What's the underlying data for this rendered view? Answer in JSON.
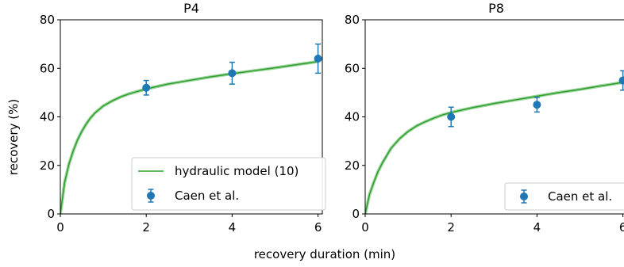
{
  "chart_data": [
    {
      "type": "line",
      "title": "P4",
      "xlabel": "recovery duration (min)",
      "ylabel": "recovery (%)",
      "xlim": [
        0,
        6.1
      ],
      "ylim": [
        0,
        80
      ],
      "xticks": [
        "0",
        "2",
        "4",
        "6"
      ],
      "yticks": [
        "0",
        "20",
        "40",
        "60",
        "80"
      ],
      "grid": false,
      "legend_placement": "lower-right",
      "series": [
        {
          "name": "hydraulic model (10)",
          "kind": "line",
          "color": "#2ca02c",
          "x": [
            0,
            0.1,
            0.2,
            0.3,
            0.4,
            0.5,
            0.6,
            0.7,
            0.8,
            0.9,
            1.0,
            1.2,
            1.4,
            1.6,
            1.8,
            2.0,
            2.5,
            3.0,
            3.5,
            4.0,
            4.5,
            5.0,
            5.5,
            6.0
          ],
          "y": [
            0,
            13,
            20.5,
            26,
            30.5,
            34,
            37,
            39.5,
            41.5,
            43,
            44.5,
            46.5,
            48.2,
            49.5,
            50.5,
            51.5,
            53.5,
            55,
            56.5,
            57.8,
            59,
            60.2,
            61.5,
            62.8
          ]
        },
        {
          "name": "Caen et al.",
          "kind": "errorbar",
          "color": "#1f77b4",
          "x": [
            2,
            4,
            6
          ],
          "y": [
            52,
            58,
            64
          ],
          "yerr": [
            3,
            4.5,
            6
          ]
        }
      ]
    },
    {
      "type": "line",
      "title": "P8",
      "xlabel": "recovery duration (min)",
      "ylabel": "",
      "xlim": [
        0,
        6.1
      ],
      "ylim": [
        0,
        80
      ],
      "xticks": [
        "0",
        "2",
        "4",
        "6"
      ],
      "yticks": [
        "0",
        "20",
        "40",
        "60",
        "80"
      ],
      "grid": false,
      "legend_placement": "lower-right",
      "series": [
        {
          "name": "hydraulic model (10)",
          "kind": "line",
          "color": "#2ca02c",
          "x": [
            0,
            0.1,
            0.2,
            0.3,
            0.4,
            0.5,
            0.6,
            0.7,
            0.8,
            0.9,
            1.0,
            1.2,
            1.4,
            1.6,
            1.8,
            2.0,
            2.5,
            3.0,
            3.5,
            4.0,
            4.5,
            5.0,
            5.5,
            6.0
          ],
          "y": [
            0,
            8,
            13,
            17.5,
            21,
            24,
            27,
            29,
            31,
            32.5,
            34,
            36.3,
            38,
            39.5,
            40.8,
            41.8,
            43.8,
            45.5,
            47,
            48.5,
            50,
            51.3,
            52.8,
            54.2
          ]
        },
        {
          "name": "Caen et al.",
          "kind": "errorbar",
          "color": "#1f77b4",
          "x": [
            2,
            4,
            6
          ],
          "y": [
            40,
            45,
            55
          ],
          "yerr": [
            4,
            3,
            4
          ]
        }
      ]
    }
  ]
}
